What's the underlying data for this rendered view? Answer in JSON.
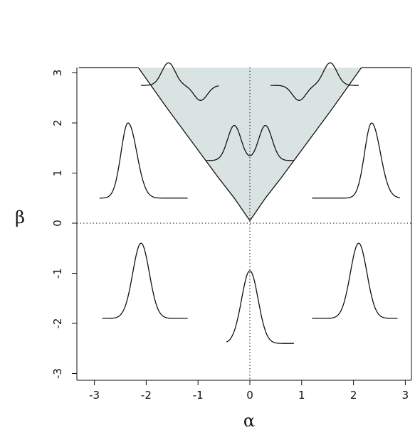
{
  "chart_data": {
    "type": "line",
    "title": "",
    "xlabel": "α",
    "ylabel": "β",
    "xlim": [
      -3.3,
      3.1
    ],
    "ylim": [
      -3.1,
      3.1
    ],
    "xticks": [
      -3,
      -2,
      -1,
      0,
      1,
      2,
      3
    ],
    "yticks": [
      -3,
      -2,
      -1,
      0,
      1,
      2,
      3
    ],
    "xtick_labels": [
      "-3",
      "-2",
      "-1",
      "0",
      "1",
      "2",
      "3"
    ],
    "ytick_labels": [
      "-3",
      "-2",
      "-1",
      "0",
      "1",
      "2",
      "3"
    ],
    "reference_lines": {
      "horizontal_dotted_at": 0,
      "vertical_dotted_at": 0
    },
    "region": {
      "description_color": "#d2dfdd",
      "upper_bound": 3.1,
      "boundary_left": [
        [
          -2.15,
          3.1
        ],
        [
          -1.6,
          2.3
        ],
        [
          -1.1,
          1.6
        ],
        [
          -0.6,
          0.9
        ],
        [
          -0.3,
          0.5
        ],
        [
          -0.1,
          0.2
        ],
        [
          0,
          0.05
        ]
      ],
      "boundary_right": [
        [
          0,
          0.05
        ],
        [
          0.1,
          0.2
        ],
        [
          0.3,
          0.5
        ],
        [
          0.6,
          0.9
        ],
        [
          1.1,
          1.6
        ],
        [
          1.6,
          2.3
        ],
        [
          2.15,
          3.1
        ]
      ]
    },
    "border_line": {
      "left": [
        [
          -3.3,
          3.1
        ],
        [
          -2.15,
          3.1
        ]
      ],
      "right": [
        [
          2.15,
          3.1
        ],
        [
          3.1,
          3.1
        ]
      ]
    },
    "density_insets": [
      {
        "alpha": -1.4,
        "beta": 2.75,
        "shape": "bimodal",
        "peaks": [
          [
            -1.57,
            3.2
          ],
          [
            -0.95,
            2.45
          ]
        ],
        "base": [
          -2.1,
          -0.6
        ]
      },
      {
        "alpha": 1.4,
        "beta": 2.75,
        "shape": "bimodal",
        "peaks": [
          [
            0.95,
            2.45
          ],
          [
            1.55,
            3.2
          ]
        ],
        "base": [
          0.4,
          2.1
        ]
      },
      {
        "alpha": 0.0,
        "beta": 1.25,
        "shape": "bimodal",
        "peaks": [
          [
            -0.3,
            1.95
          ],
          [
            0.3,
            1.95
          ]
        ],
        "base": [
          -0.85,
          0.85
        ]
      },
      {
        "alpha": -2.4,
        "beta": 0.5,
        "shape": "skewed",
        "peaks": [
          [
            -2.35,
            2.0
          ]
        ],
        "base": [
          -2.9,
          -1.2
        ]
      },
      {
        "alpha": 2.4,
        "beta": 0.5,
        "shape": "skewed",
        "peaks": [
          [
            2.35,
            2.0
          ]
        ],
        "base": [
          1.2,
          2.9
        ]
      },
      {
        "alpha": -2.1,
        "beta": -1.9,
        "shape": "unimodal",
        "peaks": [
          [
            -2.1,
            -0.4
          ]
        ],
        "base": [
          -2.85,
          -1.2
        ]
      },
      {
        "alpha": 2.1,
        "beta": -1.9,
        "shape": "unimodal",
        "peaks": [
          [
            2.1,
            -0.4
          ]
        ],
        "base": [
          1.2,
          2.85
        ]
      },
      {
        "alpha": 0.0,
        "beta": -2.4,
        "shape": "unimodal",
        "peaks": [
          [
            0.0,
            -0.95
          ]
        ],
        "base": [
          -0.45,
          0.85
        ]
      }
    ]
  }
}
